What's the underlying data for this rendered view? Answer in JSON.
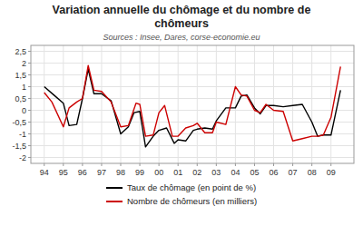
{
  "chart_data": {
    "type": "line",
    "title": "Variation annuelle du chômage et du nombre de\nchômeurs",
    "subtitle": "Sources : Insee, Dares, corse-economie.eu",
    "xlim": [
      93.3,
      110.2
    ],
    "xticks": [
      94,
      95,
      96,
      97,
      98,
      99,
      {
        "value": 100,
        "label": "00"
      },
      {
        "value": 101,
        "label": "01"
      },
      {
        "value": 102,
        "label": "02"
      },
      {
        "value": 103,
        "label": "03"
      },
      {
        "value": 104,
        "label": "04"
      },
      {
        "value": 105,
        "label": "05"
      },
      {
        "value": 106,
        "label": "06"
      },
      {
        "value": 107,
        "label": "07"
      },
      {
        "value": 108,
        "label": "08"
      },
      {
        "value": 109,
        "label": "09"
      }
    ],
    "ylim": [
      -2.25,
      2.75
    ],
    "yticks": [
      -2,
      {
        "value": -1.5,
        "label": "-1,5"
      },
      -1,
      {
        "value": -0.5,
        "label": "-0,5"
      },
      0,
      {
        "value": 0.5,
        "label": "0,5"
      },
      1,
      {
        "value": 1.5,
        "label": "1,5"
      },
      2,
      {
        "value": 2.5,
        "label": "2,5"
      }
    ],
    "grid": true,
    "legend": "bottom",
    "series": [
      {
        "name": "Taux de chômage (en point de %)",
        "color": "#000000",
        "x": [
          94.0,
          94.5,
          95.0,
          95.3,
          95.7,
          96.0,
          96.3,
          96.6,
          97.0,
          97.5,
          98.0,
          98.4,
          98.7,
          99.0,
          99.3,
          99.7,
          100.0,
          100.4,
          100.8,
          101.0,
          101.4,
          101.8,
          102.0,
          102.4,
          102.8,
          103.0,
          103.5,
          104.0,
          104.3,
          104.6,
          105.0,
          105.3,
          105.6,
          106.0,
          106.5,
          107.0,
          107.5,
          108.0,
          108.3,
          108.6,
          109.0,
          109.5
        ],
        "values": [
          1.0,
          0.65,
          0.3,
          -0.65,
          -0.6,
          0.5,
          1.75,
          0.7,
          0.7,
          0.4,
          -1.0,
          -0.7,
          -0.1,
          -0.05,
          -1.55,
          -1.1,
          -0.85,
          -0.75,
          -1.4,
          -1.25,
          -1.3,
          -0.85,
          -0.8,
          -0.75,
          -0.8,
          -0.45,
          0.1,
          0.1,
          0.6,
          0.65,
          0.1,
          -0.15,
          0.2,
          0.2,
          0.15,
          0.2,
          0.25,
          -0.5,
          -1.1,
          -1.05,
          -1.05,
          0.85
        ]
      },
      {
        "name": "Nombre de chômeurs (en milliers)",
        "color": "#cc0000",
        "x": [
          94.0,
          94.4,
          95.0,
          95.3,
          95.7,
          96.0,
          96.3,
          96.6,
          97.0,
          97.5,
          98.0,
          98.4,
          98.8,
          99.0,
          99.3,
          99.7,
          100.0,
          100.3,
          100.7,
          101.0,
          101.4,
          101.8,
          102.0,
          102.4,
          102.8,
          103.0,
          103.5,
          104.0,
          104.3,
          104.6,
          105.0,
          105.3,
          105.6,
          106.0,
          106.5,
          107.0,
          107.5,
          108.0,
          108.3,
          108.6,
          109.0,
          109.5
        ],
        "values": [
          0.75,
          0.35,
          -0.7,
          0.1,
          0.35,
          0.5,
          1.9,
          0.85,
          0.8,
          0.35,
          -0.7,
          -0.65,
          0.3,
          0.25,
          -1.1,
          -1.05,
          -0.1,
          0.2,
          -1.1,
          -1.1,
          -0.75,
          -0.65,
          -0.55,
          -0.95,
          -0.95,
          -0.5,
          -0.6,
          1.0,
          0.65,
          0.6,
          0.0,
          -0.1,
          0.25,
          0.0,
          -0.05,
          -1.3,
          -1.2,
          -1.1,
          -1.1,
          -1.05,
          -0.3,
          1.85
        ]
      }
    ]
  }
}
